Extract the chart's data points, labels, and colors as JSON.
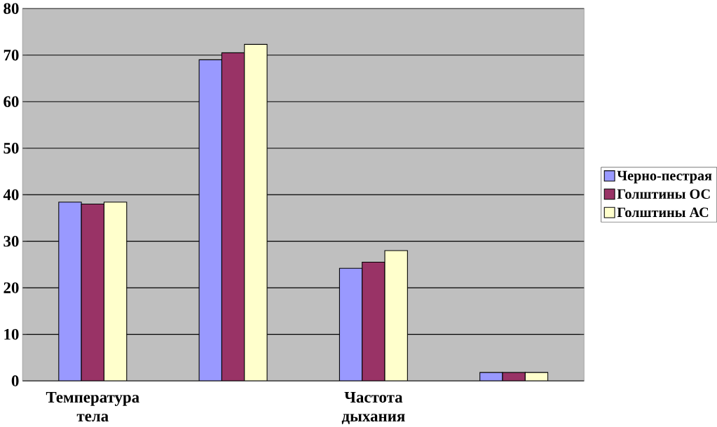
{
  "chart_data": {
    "type": "bar",
    "categories": [
      "Температура тела",
      null,
      "Частота дыхания",
      null
    ],
    "series": [
      {
        "name": "Черно-пестрая",
        "color": "#9999ff",
        "values": [
          38.4,
          69,
          24.2,
          1.8
        ]
      },
      {
        "name": "Голштины ОС",
        "color": "#993366",
        "values": [
          38,
          70.5,
          25.5,
          1.8
        ]
      },
      {
        "name": "Голштины АС",
        "color": "#ffffcc",
        "values": [
          38.4,
          72.3,
          28,
          1.8
        ]
      }
    ],
    "ylim": [
      0,
      80
    ],
    "yticks": [
      0,
      10,
      20,
      30,
      40,
      50,
      60,
      70,
      80
    ],
    "grid": "y",
    "legend": "right"
  }
}
